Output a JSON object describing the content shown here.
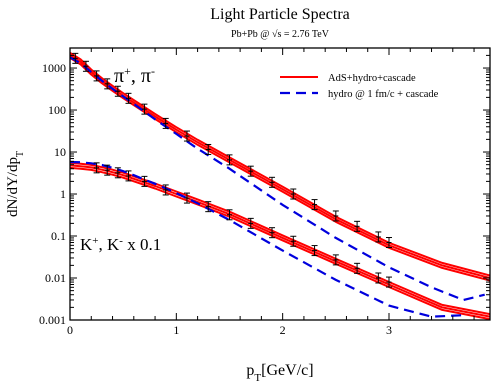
{
  "chart_data": {
    "type": "line",
    "title": "Light Particle Spectra",
    "subtitle": "Pb+Pb @ √s = 2.76 TeV",
    "xlabel": "p",
    "xlabel_sub": "T",
    "xlabel_rest": "[GeV/c]",
    "ylabel": "dN/dY/dp",
    "ylabel_sub": "T",
    "xlim": [
      0,
      3.95
    ],
    "ylim": [
      0.001,
      3000
    ],
    "yscale": "log",
    "x_ticks": [
      "0",
      "1",
      "2",
      "3"
    ],
    "y_ticks": [
      "0.001",
      "0.01",
      "0.1",
      "1",
      "10",
      "100",
      "1000"
    ],
    "legend_position": "top-right",
    "legend": [
      {
        "label": "AdS+hydro+cascade",
        "color": "#ff0000",
        "style": "solid"
      },
      {
        "label": "hydro @ 1 fm/c + cascade",
        "color": "#0000dd",
        "style": "dashed"
      }
    ],
    "annotations": {
      "pion": {
        "main": "π",
        "sup1": "+",
        "sep": ", π",
        "sup2": "-"
      },
      "kaon": {
        "main": "K",
        "sup1": "+",
        "sep": ", K",
        "sup2": "-",
        "tail": " x 0.1"
      }
    },
    "series": [
      {
        "name": "AdS+hydro+cascade",
        "group": "pion",
        "x": [
          0.0,
          0.1,
          0.2,
          0.3,
          0.4,
          0.5,
          0.6,
          0.8,
          1.0,
          1.2,
          1.5,
          2.0,
          2.5,
          3.0,
          3.5,
          3.95
        ],
        "y": [
          2000,
          1400,
          800,
          500,
          330,
          220,
          150,
          70,
          34,
          17,
          6.5,
          1.3,
          0.25,
          0.06,
          0.02,
          0.01
        ]
      },
      {
        "name": "hydro @ 1 fm/c + cascade",
        "group": "pion",
        "x": [
          0.0,
          0.1,
          0.2,
          0.3,
          0.4,
          0.5,
          0.6,
          0.8,
          1.0,
          1.2,
          1.5,
          2.0,
          2.5,
          3.0,
          3.4,
          3.7,
          3.9
        ],
        "y": [
          1800,
          1300,
          800,
          500,
          320,
          210,
          140,
          60,
          27,
          12,
          4.0,
          0.55,
          0.09,
          0.018,
          0.006,
          0.003,
          0.004
        ]
      },
      {
        "name": "AdS+hydro+cascade",
        "group": "kaon",
        "x": [
          0.0,
          0.1,
          0.2,
          0.3,
          0.4,
          0.5,
          0.6,
          0.8,
          1.0,
          1.2,
          1.5,
          2.0,
          2.5,
          3.0,
          3.5,
          3.95
        ],
        "y": [
          4.8,
          4.6,
          4.3,
          3.8,
          3.3,
          2.8,
          2.3,
          1.55,
          1.0,
          0.65,
          0.33,
          0.09,
          0.025,
          0.007,
          0.002,
          0.0012
        ]
      },
      {
        "name": "hydro @ 1 fm/c + cascade",
        "group": "kaon",
        "x": [
          0.0,
          0.1,
          0.2,
          0.3,
          0.4,
          0.5,
          0.6,
          0.8,
          1.0,
          1.2,
          1.5,
          2.0,
          2.5,
          3.0,
          3.4,
          3.7
        ],
        "y": [
          5.8,
          5.7,
          5.4,
          4.9,
          4.2,
          3.5,
          2.8,
          1.75,
          1.05,
          0.6,
          0.24,
          0.045,
          0.009,
          0.0022,
          0.0012,
          0.0013
        ]
      }
    ],
    "data_points": [
      {
        "name": "pion data",
        "x": [
          0.05,
          0.15,
          0.25,
          0.35,
          0.45,
          0.55,
          0.7,
          0.9,
          1.1,
          1.3,
          1.5,
          1.7,
          1.9,
          2.1,
          2.3,
          2.5,
          2.7,
          2.9,
          3.0
        ],
        "y": [
          1700,
          1100,
          650,
          420,
          280,
          190,
          105,
          48,
          24,
          11.5,
          6.5,
          3.5,
          1.9,
          1.0,
          0.56,
          0.3,
          0.17,
          0.095,
          0.07
        ]
      },
      {
        "name": "kaon data",
        "x": [
          0.25,
          0.35,
          0.45,
          0.55,
          0.7,
          0.9,
          1.1,
          1.3,
          1.5,
          1.7,
          1.9,
          2.1,
          2.3,
          2.5,
          2.7,
          2.9,
          3.0
        ],
        "y": [
          4.2,
          3.7,
          3.2,
          2.7,
          2.0,
          1.25,
          0.8,
          0.5,
          0.32,
          0.2,
          0.12,
          0.075,
          0.045,
          0.027,
          0.017,
          0.01,
          0.008
        ]
      }
    ]
  }
}
